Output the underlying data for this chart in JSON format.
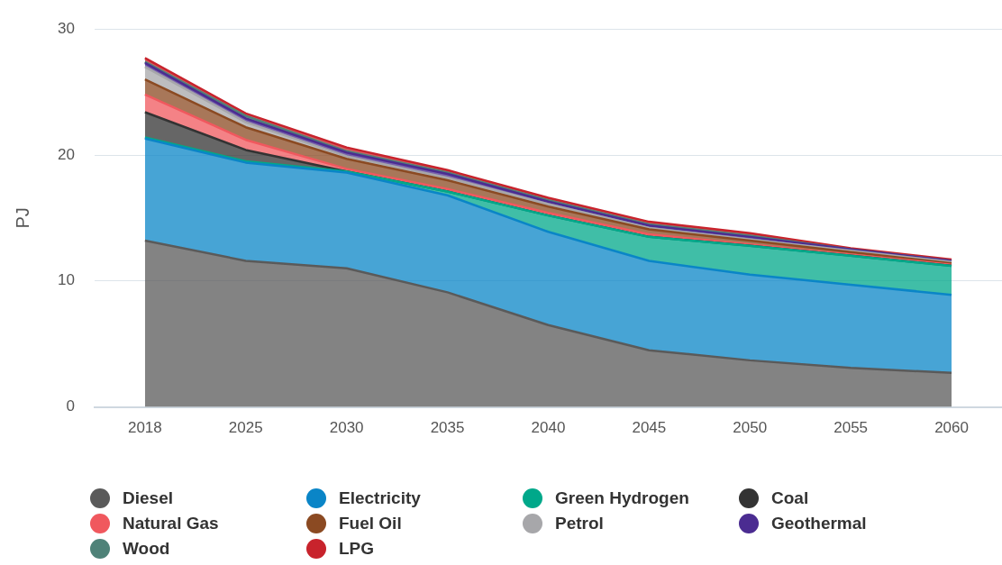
{
  "chart_data": {
    "type": "area",
    "stacked": true,
    "ylabel": "PJ",
    "categories": [
      "2018",
      "2025",
      "2030",
      "2035",
      "2040",
      "2045",
      "2050",
      "2055",
      "2060"
    ],
    "ylim": [
      0,
      30
    ],
    "yticks": [
      0,
      10,
      20,
      30
    ],
    "grid": "y",
    "legend": "bottom",
    "marker": "none",
    "series": [
      {
        "name": "Diesel",
        "color": "#5a5a5a",
        "values": [
          13.2,
          11.6,
          11.0,
          9.1,
          6.5,
          4.5,
          3.7,
          3.1,
          2.7
        ]
      },
      {
        "name": "Electricity",
        "color": "#0a85c7",
        "values": [
          8.1,
          7.8,
          7.6,
          7.7,
          7.4,
          7.1,
          6.8,
          6.6,
          6.2
        ]
      },
      {
        "name": "Green Hydrogen",
        "color": "#00a88a",
        "values": [
          0.1,
          0.1,
          0.1,
          0.3,
          1.3,
          1.9,
          2.3,
          2.3,
          2.3
        ]
      },
      {
        "name": "Coal",
        "color": "#333333",
        "values": [
          2.0,
          0.9,
          0,
          0,
          0,
          0,
          0,
          0,
          0
        ]
      },
      {
        "name": "Natural Gas",
        "color": "#f0585e",
        "values": [
          1.4,
          0.8,
          0.2,
          0.2,
          0.2,
          0.2,
          0.1,
          0.1,
          0.1
        ]
      },
      {
        "name": "Fuel Oil",
        "color": "#8b4a22",
        "values": [
          1.2,
          1.0,
          0.8,
          0.7,
          0.5,
          0.4,
          0.3,
          0.2,
          0.1
        ]
      },
      {
        "name": "Petrol",
        "color": "#a7a7aa",
        "values": [
          1.0,
          0.4,
          0.2,
          0.2,
          0.2,
          0.1,
          0.1,
          0.1,
          0.1
        ]
      },
      {
        "name": "Geothermal",
        "color": "#4b2c91",
        "values": [
          0.3,
          0.3,
          0.3,
          0.3,
          0.2,
          0.2,
          0.2,
          0.1,
          0.1
        ]
      },
      {
        "name": "Wood",
        "color": "#4f8278",
        "values": [
          0.1,
          0.2,
          0.1,
          0.1,
          0.1,
          0.1,
          0.1,
          0.0,
          0.0
        ]
      },
      {
        "name": "LPG",
        "color": "#c8232c",
        "values": [
          0.3,
          0.2,
          0.3,
          0.2,
          0.2,
          0.2,
          0.2,
          0.1,
          0.1
        ]
      }
    ]
  }
}
